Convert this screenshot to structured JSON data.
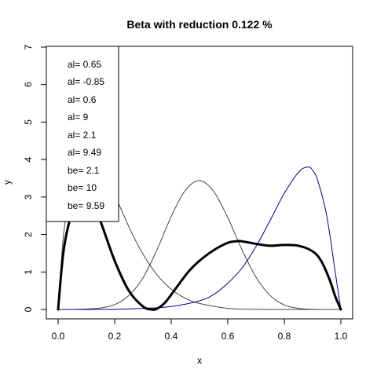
{
  "chart_data": {
    "type": "line",
    "title": "Beta with reduction 0.122 %",
    "xlabel": "x",
    "ylabel": "y",
    "xlim": [
      0,
      1
    ],
    "ylim": [
      0,
      7
    ],
    "x_ticks": [
      "0.0",
      "0.2",
      "0.4",
      "0.6",
      "0.8",
      "1.0"
    ],
    "y_ticks": [
      "0",
      "1",
      "2",
      "3",
      "4",
      "5",
      "6",
      "7"
    ],
    "grid": false,
    "legend_placement": "top-left",
    "legend_entries": [
      "al= 0.65",
      "al= -0.85",
      "al= 0.6",
      "al= 9",
      "al= 2.1",
      "al= 9.49",
      "be= 2.1",
      "be= 10",
      "be= 9.59"
    ],
    "series": [
      {
        "color": "#444444",
        "width": "thin",
        "x": [
          0,
          0.02,
          0.05,
          0.08,
          0.11,
          0.14,
          0.18,
          0.22,
          0.26,
          0.3,
          0.35,
          0.4,
          0.45,
          0.5,
          0.6,
          0.7,
          0.8,
          0.9,
          1.0
        ],
        "y": [
          0,
          2.05,
          3.4,
          4.0,
          4.13,
          3.95,
          3.4,
          2.72,
          2.05,
          1.48,
          0.92,
          0.54,
          0.3,
          0.16,
          0.03,
          0.005,
          0,
          0,
          0
        ]
      },
      {
        "color": "#444444",
        "width": "thin",
        "x": [
          0,
          0.05,
          0.1,
          0.15,
          0.2,
          0.25,
          0.3,
          0.35,
          0.4,
          0.45,
          0.5,
          0.55,
          0.6,
          0.65,
          0.7,
          0.75,
          0.8,
          0.85,
          0.9,
          0.95,
          1.0
        ],
        "y": [
          0,
          0,
          0.01,
          0.04,
          0.13,
          0.37,
          0.84,
          1.6,
          2.48,
          3.18,
          3.44,
          3.15,
          2.45,
          1.6,
          0.86,
          0.37,
          0.12,
          0.03,
          0.005,
          0,
          0
        ]
      },
      {
        "color": "#00008B",
        "width": "thin",
        "x": [
          0,
          0.2,
          0.3,
          0.4,
          0.5,
          0.55,
          0.6,
          0.65,
          0.7,
          0.75,
          0.8,
          0.85,
          0.88,
          0.9,
          0.92,
          0.95,
          0.98,
          1.0
        ],
        "y": [
          0,
          0.005,
          0.03,
          0.08,
          0.23,
          0.4,
          0.7,
          1.1,
          1.68,
          2.38,
          3.1,
          3.66,
          3.8,
          3.72,
          3.4,
          2.5,
          1.0,
          0
        ]
      },
      {
        "color": "#000000",
        "width": "thick",
        "x": [
          0,
          0.02,
          0.05,
          0.08,
          0.1,
          0.12,
          0.15,
          0.2,
          0.25,
          0.3,
          0.33,
          0.35,
          0.38,
          0.42,
          0.46,
          0.5,
          0.55,
          0.6,
          0.63,
          0.65,
          0.7,
          0.75,
          0.8,
          0.85,
          0.9,
          0.93,
          0.96,
          0.98,
          1.0
        ],
        "y": [
          0,
          1.6,
          2.6,
          2.95,
          3.0,
          2.85,
          2.35,
          1.3,
          0.5,
          0.08,
          0.0,
          0.02,
          0.2,
          0.6,
          1.0,
          1.3,
          1.58,
          1.78,
          1.82,
          1.82,
          1.75,
          1.7,
          1.72,
          1.7,
          1.55,
          1.3,
          0.8,
          0.35,
          0
        ]
      }
    ]
  }
}
